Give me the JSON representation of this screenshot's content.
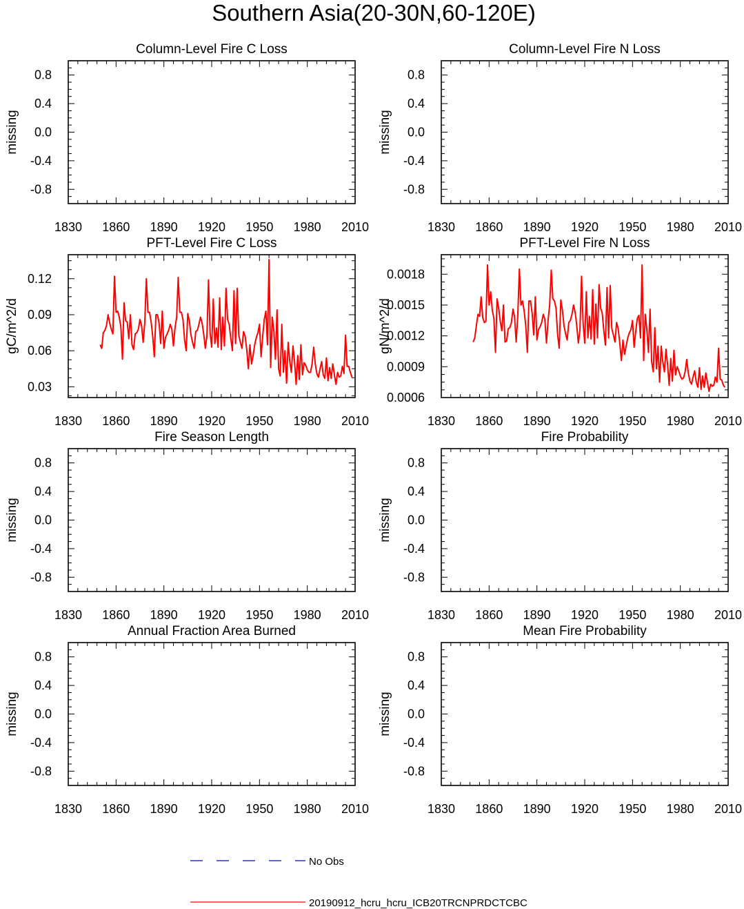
{
  "figure_title": "Southern Asia(20-30N,60-120E)",
  "legend": [
    {
      "label": "No Obs",
      "color": "#0000c8",
      "style": "dashed"
    },
    {
      "label": "20190912_hcru_hcru_ICB20TRCNPRDCTCBC",
      "color": "#ff0000",
      "style": "solid"
    }
  ],
  "chart_data": [
    {
      "id": "col-c",
      "type": "line",
      "title": "Column-Level Fire C Loss",
      "ylabel": "missing",
      "xlim": [
        1830,
        2010
      ],
      "xticks": [
        1830,
        1860,
        1890,
        1920,
        1950,
        1980,
        2010
      ],
      "ylim": [
        -1,
        1
      ],
      "yticks": [
        0.8,
        0.4,
        0.0,
        -0.4,
        -0.8
      ],
      "ytick_labels": [
        "0.8",
        "0.4",
        "0.0",
        "-0.4",
        "-0.8"
      ],
      "series": []
    },
    {
      "id": "col-n",
      "type": "line",
      "title": "Column-Level Fire N Loss",
      "ylabel": "missing",
      "xlim": [
        1830,
        2010
      ],
      "xticks": [
        1830,
        1860,
        1890,
        1920,
        1950,
        1980,
        2010
      ],
      "ylim": [
        -1,
        1
      ],
      "yticks": [
        0.8,
        0.4,
        0.0,
        -0.4,
        -0.8
      ],
      "ytick_labels": [
        "0.8",
        "0.4",
        "0.0",
        "-0.4",
        "-0.8"
      ],
      "series": []
    },
    {
      "id": "pft-c",
      "type": "line",
      "title": "PFT-Level Fire C Loss",
      "ylabel": "gC/m^2/d",
      "xlim": [
        1830,
        2010
      ],
      "xticks": [
        1830,
        1860,
        1890,
        1920,
        1950,
        1980,
        2010
      ],
      "ylim": [
        0.021,
        0.14
      ],
      "yticks": [
        0.12,
        0.09,
        0.06,
        0.03
      ],
      "ytick_labels": [
        "0.12",
        "0.09",
        "0.06",
        "0.03"
      ],
      "series": [
        {
          "name": "20190912_hcru_hcru_ICB20TRCNPRDCTCBC",
          "color": "#ff0000",
          "x_start": 1850,
          "values": [
            0.065,
            0.062,
            0.075,
            0.077,
            0.081,
            0.09,
            0.083,
            0.078,
            0.074,
            0.122,
            0.092,
            0.093,
            0.088,
            0.08,
            0.053,
            0.1,
            0.085,
            0.084,
            0.07,
            0.09,
            0.065,
            0.061,
            0.074,
            0.075,
            0.078,
            0.086,
            0.081,
            0.067,
            0.083,
            0.12,
            0.092,
            0.092,
            0.084,
            0.072,
            0.055,
            0.09,
            0.09,
            0.083,
            0.066,
            0.093,
            0.062,
            0.071,
            0.074,
            0.077,
            0.082,
            0.078,
            0.064,
            0.079,
            0.088,
            0.121,
            0.092,
            0.092,
            0.086,
            0.069,
            0.06,
            0.091,
            0.085,
            0.073,
            0.067,
            0.062,
            0.076,
            0.077,
            0.082,
            0.088,
            0.083,
            0.074,
            0.062,
            0.072,
            0.119,
            0.075,
            0.063,
            0.103,
            0.066,
            0.079,
            0.063,
            0.104,
            0.061,
            0.088,
            0.064,
            0.112,
            0.086,
            0.082,
            0.07,
            0.06,
            0.11,
            0.066,
            0.112,
            0.073,
            0.067,
            0.062,
            0.076,
            0.072,
            0.061,
            0.045,
            0.065,
            0.049,
            0.056,
            0.065,
            0.071,
            0.075,
            0.082,
            0.055,
            0.072,
            0.086,
            0.093,
            0.065,
            0.136,
            0.046,
            0.088,
            0.077,
            0.053,
            0.094,
            0.045,
            0.039,
            0.082,
            0.042,
            0.06,
            0.033,
            0.067,
            0.051,
            0.042,
            0.064,
            0.051,
            0.032,
            0.056,
            0.036,
            0.065,
            0.04,
            0.05,
            0.048,
            0.044,
            0.042,
            0.042,
            0.049,
            0.063,
            0.049,
            0.041,
            0.038,
            0.045,
            0.051,
            0.04,
            0.037,
            0.054,
            0.035,
            0.046,
            0.037,
            0.049,
            0.04,
            0.032,
            0.042,
            0.038,
            0.039,
            0.047,
            0.041,
            0.073,
            0.047,
            0.047,
            0.042,
            0.038
          ]
        }
      ]
    },
    {
      "id": "pft-n",
      "type": "line",
      "title": "PFT-Level Fire N Loss",
      "ylabel": "gN/m^2/d",
      "xlim": [
        1830,
        2010
      ],
      "xticks": [
        1830,
        1860,
        1890,
        1920,
        1950,
        1980,
        2010
      ],
      "ylim": [
        0.0006,
        0.00199
      ],
      "yticks": [
        0.0018,
        0.0015,
        0.0012,
        0.0009,
        0.0006
      ],
      "ytick_labels": [
        "0.0018",
        "0.0015",
        "0.0012",
        "0.0009",
        "0.0006"
      ],
      "series": [
        {
          "name": "20190912_hcru_hcru_ICB20TRCNPRDCTCBC",
          "color": "#ff0000",
          "x_start": 1850,
          "values": [
            0.00114,
            0.00118,
            0.0013,
            0.00141,
            0.00139,
            0.00158,
            0.00138,
            0.00133,
            0.00134,
            0.00189,
            0.0015,
            0.00163,
            0.00145,
            0.00137,
            0.00104,
            0.00156,
            0.00147,
            0.00134,
            0.00125,
            0.0015,
            0.00114,
            0.00115,
            0.00127,
            0.00128,
            0.00133,
            0.00146,
            0.00138,
            0.00114,
            0.0014,
            0.00185,
            0.0015,
            0.00154,
            0.00144,
            0.0013,
            0.00104,
            0.00154,
            0.00154,
            0.00142,
            0.00121,
            0.00158,
            0.00116,
            0.00126,
            0.00129,
            0.00133,
            0.00141,
            0.00136,
            0.00113,
            0.00135,
            0.0015,
            0.00184,
            0.00156,
            0.00154,
            0.00147,
            0.00121,
            0.00108,
            0.00155,
            0.00145,
            0.0013,
            0.00122,
            0.00116,
            0.00133,
            0.00135,
            0.00141,
            0.0015,
            0.00143,
            0.0013,
            0.00113,
            0.00126,
            0.00178,
            0.00132,
            0.00113,
            0.00163,
            0.00118,
            0.00139,
            0.00117,
            0.00165,
            0.00112,
            0.00151,
            0.00118,
            0.0017,
            0.00147,
            0.00142,
            0.00125,
            0.00111,
            0.00167,
            0.00118,
            0.00169,
            0.00127,
            0.00121,
            0.00114,
            0.00133,
            0.00127,
            0.00113,
            0.00096,
            0.00116,
            0.00102,
            0.0011,
            0.00118,
            0.00123,
            0.00126,
            0.00135,
            0.00109,
            0.00124,
            0.00137,
            0.0014,
            0.00118,
            0.00189,
            0.00096,
            0.00141,
            0.00126,
            0.00104,
            0.00146,
            0.00095,
            0.00085,
            0.00128,
            0.00088,
            0.0011,
            0.00075,
            0.0011,
            0.00095,
            0.00085,
            0.00107,
            0.00092,
            0.00072,
            0.00098,
            0.00076,
            0.00106,
            0.00082,
            0.0009,
            0.00086,
            0.00081,
            0.00078,
            0.00079,
            0.00085,
            0.00097,
            0.00084,
            0.00076,
            0.00073,
            0.0008,
            0.00086,
            0.00075,
            0.0007,
            0.00089,
            0.00068,
            0.00081,
            0.0007,
            0.00084,
            0.00075,
            0.00066,
            0.00073,
            0.00071,
            0.00072,
            0.0008,
            0.00075,
            0.00108,
            0.00078,
            0.00077,
            0.00072,
            0.0007
          ]
        }
      ]
    },
    {
      "id": "season",
      "type": "line",
      "title": "Fire Season Length",
      "ylabel": "missing",
      "xlim": [
        1830,
        2010
      ],
      "xticks": [
        1830,
        1860,
        1890,
        1920,
        1950,
        1980,
        2010
      ],
      "ylim": [
        -1,
        1
      ],
      "yticks": [
        0.8,
        0.4,
        0.0,
        -0.4,
        -0.8
      ],
      "ytick_labels": [
        "0.8",
        "0.4",
        "0.0",
        "-0.4",
        "-0.8"
      ],
      "series": []
    },
    {
      "id": "prob",
      "type": "line",
      "title": "Fire Probability",
      "ylabel": "missing",
      "xlim": [
        1830,
        2010
      ],
      "xticks": [
        1830,
        1860,
        1890,
        1920,
        1950,
        1980,
        2010
      ],
      "ylim": [
        -1,
        1
      ],
      "yticks": [
        0.8,
        0.4,
        0.0,
        -0.4,
        -0.8
      ],
      "ytick_labels": [
        "0.8",
        "0.4",
        "0.0",
        "-0.4",
        "-0.8"
      ],
      "series": []
    },
    {
      "id": "burned",
      "type": "line",
      "title": "Annual Fraction Area Burned",
      "ylabel": "missing",
      "xlim": [
        1830,
        2010
      ],
      "xticks": [
        1830,
        1860,
        1890,
        1920,
        1950,
        1980,
        2010
      ],
      "ylim": [
        -1,
        1
      ],
      "yticks": [
        0.8,
        0.4,
        0.0,
        -0.4,
        -0.8
      ],
      "ytick_labels": [
        "0.8",
        "0.4",
        "0.0",
        "-0.4",
        "-0.8"
      ],
      "series": []
    },
    {
      "id": "meanprob",
      "type": "line",
      "title": "Mean Fire Probability",
      "ylabel": "missing",
      "xlim": [
        1830,
        2010
      ],
      "xticks": [
        1830,
        1860,
        1890,
        1920,
        1950,
        1980,
        2010
      ],
      "ylim": [
        -1,
        1
      ],
      "yticks": [
        0.8,
        0.4,
        0.0,
        -0.4,
        -0.8
      ],
      "ytick_labels": [
        "0.8",
        "0.4",
        "0.0",
        "-0.4",
        "-0.8"
      ],
      "series": []
    }
  ]
}
